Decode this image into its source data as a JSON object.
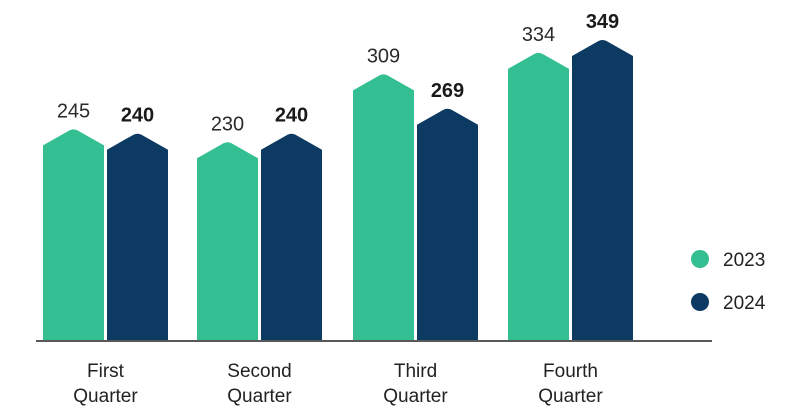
{
  "chart_data": {
    "type": "bar",
    "categories": [
      [
        "First",
        "Quarter"
      ],
      [
        "Second",
        "Quarter"
      ],
      [
        "Third",
        "Quarter"
      ],
      [
        "Fourth",
        "Quarter"
      ]
    ],
    "series": [
      {
        "name": "2023",
        "color": "#33bf91",
        "values": [
          245,
          230,
          309,
          334
        ],
        "label_weight": "normal"
      },
      {
        "name": "2024",
        "color": "#0d3a63",
        "values": [
          240,
          240,
          269,
          349
        ],
        "label_weight": "bold"
      }
    ],
    "ylim": [
      0,
      349
    ],
    "grid": false,
    "legend_position": "right"
  }
}
